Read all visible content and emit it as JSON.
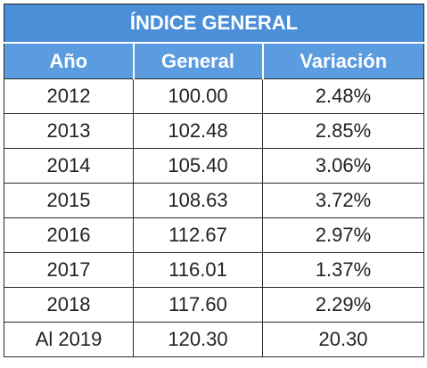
{
  "table": {
    "title": "ÍNDICE GENERAL",
    "headers": [
      "Año",
      "General",
      "Variación"
    ],
    "rows": [
      [
        "2012",
        "100.00",
        "2.48%"
      ],
      [
        "2013",
        "102.48",
        "2.85%"
      ],
      [
        "2014",
        "105.40",
        "3.06%"
      ],
      [
        "2015",
        "108.63",
        "3.72%"
      ],
      [
        "2016",
        "112.67",
        "2.97%"
      ],
      [
        "2017",
        "116.01",
        "1.37%"
      ],
      [
        "2018",
        "117.60",
        "2.29%"
      ],
      [
        "Al 2019",
        "120.30",
        "20.30"
      ]
    ]
  },
  "colors": {
    "header_blue": "#4a8fd8",
    "header_text": "#ffffff"
  }
}
